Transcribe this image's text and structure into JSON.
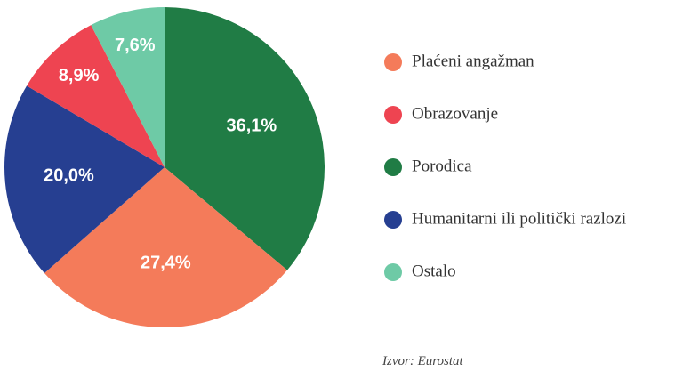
{
  "chart_data": {
    "type": "pie",
    "categories": [
      "Plaćeni angažman",
      "Obrazovanje",
      "Porodica",
      "Humanitarni ili politički razlozi",
      "Ostalo"
    ],
    "values": [
      27.4,
      8.9,
      36.1,
      20.0,
      7.6
    ],
    "value_labels": [
      "27,4%",
      "8,9%",
      "36,1%",
      "20,0%",
      "7,6%"
    ],
    "colors": [
      "#f47b5a",
      "#ee4451",
      "#207c45",
      "#263f91",
      "#6ecaa6"
    ],
    "source": "Izvor: Eurostat"
  }
}
